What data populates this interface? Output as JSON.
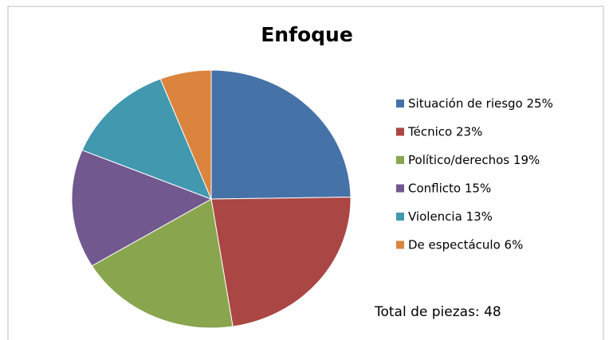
{
  "chart_data": {
    "type": "pie",
    "title": "Enfoque",
    "categories": [
      "Situación de riesgo",
      "Técnico",
      "Político/derechos",
      "Conflicto",
      "Violencia",
      "De espectáculo"
    ],
    "values": [
      25,
      23,
      19,
      15,
      13,
      6
    ],
    "value_labels": [
      "25%",
      "23%",
      "19%",
      "15%",
      "13%",
      "6%"
    ],
    "colors": [
      "#4572a7",
      "#aa4643",
      "#89a54e",
      "#71588f",
      "#4198af",
      "#db843d"
    ],
    "legend": "right",
    "annotations": [
      "Total de piezas: 48"
    ]
  }
}
